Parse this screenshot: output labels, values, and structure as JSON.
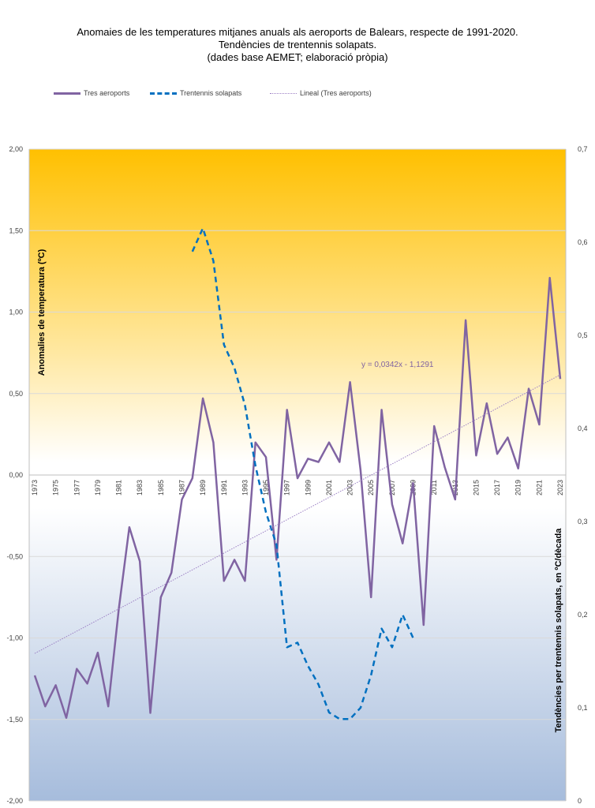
{
  "title": {
    "line1": "Anomaies de les temperatures mitjanes anuals als aeroports de Balears, respecte de 1991-2020.",
    "line2": "Tendències de trentennis solapats.",
    "line3": "(dades base AEMET; elaboració pròpia)"
  },
  "colors": {
    "series_main": "#8064a2",
    "series_trend30": "#0070c0",
    "series_linear": "#9b7fc4",
    "trendline_label": "#8064a2",
    "bg_top": "#ffc000",
    "bg_bottom": "#a6bcdc"
  },
  "chart_data": {
    "type": "line",
    "ylabel": "Anomalies de temperatura (ºC)",
    "y2label": "Tendències per trentennis solapats, en ºC/dècada",
    "ylim": [
      -2,
      2
    ],
    "y2lim": [
      0,
      0.7
    ],
    "y_ticks": [
      "2,00",
      "1,50",
      "1,00",
      "0,50",
      "0,00",
      "-0,50",
      "-1,00",
      "-1,50",
      "-2,00"
    ],
    "y2_ticks": [
      "0,7",
      "0,6",
      "0,5",
      "0,4",
      "0,3",
      "0,2",
      "0,1",
      "0"
    ],
    "x_tick_labels": [
      "1973",
      "1975",
      "1977",
      "1979",
      "1981",
      "1983",
      "1985",
      "1987",
      "1989",
      "1991",
      "1993",
      "1995",
      "1997",
      "1999",
      "2001",
      "2003",
      "2005",
      "2007",
      "2009",
      "2011",
      "2013",
      "2015",
      "2017",
      "2019",
      "2021",
      "2023"
    ],
    "grid": true,
    "legend_position": "top-left",
    "trendline_equation": "y = 0,0342x - 1,1291",
    "series": [
      {
        "name": "Tres aeroports",
        "axis": "left",
        "x": [
          1973,
          1974,
          1975,
          1976,
          1977,
          1978,
          1979,
          1980,
          1981,
          1982,
          1983,
          1984,
          1985,
          1986,
          1987,
          1988,
          1989,
          1990,
          1991,
          1992,
          1993,
          1994,
          1995,
          1996,
          1997,
          1998,
          1999,
          2000,
          2001,
          2002,
          2003,
          2004,
          2005,
          2006,
          2007,
          2008,
          2009,
          2010,
          2011,
          2012,
          2013,
          2014,
          2015,
          2016,
          2017,
          2018,
          2019,
          2020,
          2021,
          2022,
          2023
        ],
        "values": [
          -1.23,
          -1.42,
          -1.29,
          -1.49,
          -1.19,
          -1.28,
          -1.09,
          -1.42,
          -0.82,
          -0.32,
          -0.53,
          -1.46,
          -0.75,
          -0.6,
          -0.15,
          -0.02,
          0.47,
          0.2,
          -0.65,
          -0.52,
          -0.65,
          0.2,
          0.11,
          -0.52,
          0.4,
          -0.02,
          0.1,
          0.08,
          0.2,
          0.08,
          0.57,
          0.03,
          -0.75,
          0.4,
          -0.18,
          -0.42,
          -0.05,
          -0.92,
          0.3,
          0.05,
          -0.15,
          0.95,
          0.12,
          0.44,
          0.13,
          0.23,
          0.04,
          0.53,
          0.31,
          1.21,
          0.59
        ]
      },
      {
        "name": "Trentennis solapats",
        "axis": "right",
        "x": [
          1988,
          1989,
          1990,
          1991,
          1992,
          1993,
          1994,
          1995,
          1996,
          1997,
          1998,
          1999,
          2000,
          2001,
          2002,
          2003,
          2004,
          2005,
          2006,
          2007,
          2008,
          2009
        ],
        "values": [
          0.59,
          0.615,
          0.58,
          0.49,
          0.465,
          0.425,
          0.36,
          0.31,
          0.275,
          0.165,
          0.17,
          0.145,
          0.125,
          0.095,
          0.088,
          0.088,
          0.1,
          0.135,
          0.185,
          0.165,
          0.2,
          0.175
        ]
      },
      {
        "name": "Lineal  (Tres aeroports)",
        "axis": "left",
        "type": "linear_trend",
        "slope": 0.0342,
        "intercept": -1.1291,
        "x": [
          1973,
          2023
        ],
        "values": [
          -1.095,
          0.615
        ]
      }
    ]
  }
}
